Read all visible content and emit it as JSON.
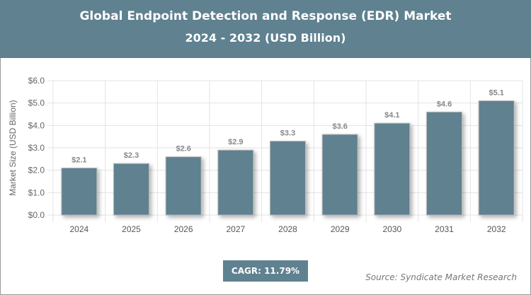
{
  "chart_data": {
    "type": "bar",
    "title": "Global Endpoint Detection and Response (EDR) Market",
    "subtitle": "2024 - 2032 (USD Billion)",
    "ylabel": "Market Size (USD Billion)",
    "xlabel": "",
    "categories": [
      "2024",
      "2025",
      "2026",
      "2027",
      "2028",
      "2029",
      "2030",
      "2031",
      "2032"
    ],
    "values": [
      2.1,
      2.3,
      2.6,
      2.9,
      3.3,
      3.6,
      4.1,
      4.6,
      5.1
    ],
    "data_labels": [
      "$2.1",
      "$2.3",
      "$2.6",
      "$2.9",
      "$3.3",
      "$3.6",
      "$4.1",
      "$4.6",
      "$5.1"
    ],
    "ylim": [
      0,
      6
    ],
    "yticks": [
      "$0.0",
      "$1.0",
      "$2.0",
      "$3.0",
      "$4.0",
      "$5.0",
      "$6.0"
    ],
    "grid": true,
    "bar_color": "#5f8190"
  },
  "cagr": "CAGR: 11.79%",
  "source": "Source: Syndicate Market Research"
}
